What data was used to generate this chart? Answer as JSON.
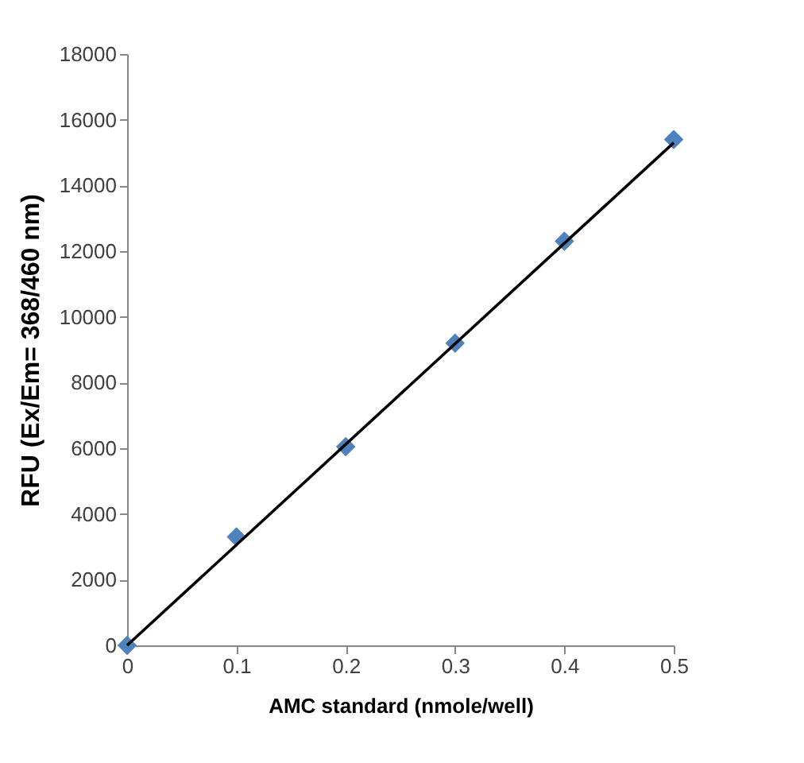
{
  "chart_data": {
    "type": "scatter",
    "xlabel": "AMC standard (nmole/well)",
    "ylabel": "RFU (Ex/Em= 368/460 nm)",
    "x": [
      0,
      0.1,
      0.2,
      0.3,
      0.4,
      0.5
    ],
    "series": [
      {
        "color": "#4f81bd",
        "marker": "diamond",
        "values": [
          0,
          3300,
          6050,
          9200,
          12300,
          15400
        ]
      },
      {
        "type": "line",
        "color": "#000000",
        "x": [
          0,
          0.5
        ],
        "values": [
          0,
          15300
        ],
        "line_style": "solid"
      }
    ],
    "xlim": [
      0,
      0.5
    ],
    "xticks": [
      0,
      0.1,
      0.2,
      0.3,
      0.4,
      0.5
    ],
    "ylim": [
      0,
      18000
    ],
    "yticks": [
      0,
      2000,
      4000,
      6000,
      8000,
      10000,
      12000,
      14000,
      16000,
      18000
    ],
    "grid": false
  }
}
